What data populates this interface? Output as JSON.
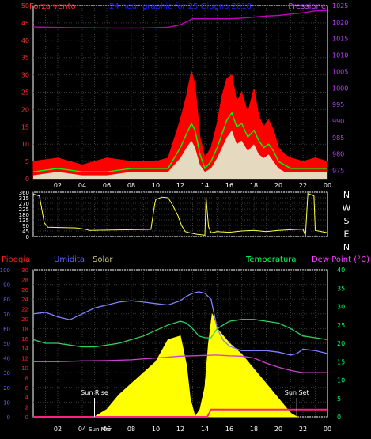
{
  "chart_data": [
    {
      "type": "line",
      "panel": "wind-pressure",
      "title": "24 hour graphic for  25 Giugno 2018",
      "left_label": "Forza vento",
      "right_label": "Pressione",
      "x_ticks": [
        "02",
        "04",
        "06",
        "08",
        "10",
        "12",
        "14",
        "16",
        "18",
        "20",
        "22",
        "00"
      ],
      "y_left_ticks": [
        0,
        5,
        10,
        15,
        20,
        25,
        30,
        35,
        40,
        45,
        50
      ],
      "y_right_ticks": [
        975,
        980,
        985,
        990,
        995,
        1000,
        1005,
        1010,
        1015,
        1020,
        1025
      ],
      "y_left_range": [
        0,
        50
      ],
      "y_right_range": [
        972.5,
        1025
      ],
      "grid": true,
      "colors": {
        "pressure": "#c000c0",
        "gust": "#ff0000",
        "average": "#00ff00",
        "speed": "#e0ffe0",
        "left_axis": "#ff3030",
        "right_axis": "#c040ff"
      },
      "series": [
        {
          "key": "pressure",
          "hours": [
            0,
            3,
            6,
            9,
            10,
            11,
            12,
            13,
            14,
            15,
            16,
            17,
            18,
            19,
            20,
            21,
            22,
            23,
            24
          ],
          "values": [
            1018.5,
            1018.3,
            1018.2,
            1018.2,
            1018.3,
            1018.4,
            1019.2,
            1021,
            1021,
            1021,
            1021,
            1021.2,
            1021.5,
            1021.8,
            1022,
            1022.4,
            1022.8,
            1023.4,
            1023.5
          ]
        },
        {
          "key": "gust",
          "hours": [
            0,
            2,
            4,
            6,
            8,
            10,
            11,
            12,
            12.5,
            12.9,
            13.2,
            13.6,
            14,
            14.5,
            15,
            15.4,
            15.8,
            16.2,
            16.6,
            17,
            17.5,
            18,
            18.4,
            18.8,
            19.2,
            19.6,
            20,
            20.5,
            21,
            22,
            23,
            24
          ],
          "values": [
            5,
            6,
            4,
            6,
            5,
            5,
            6,
            17,
            24,
            31,
            27,
            12,
            6,
            9,
            16,
            24,
            29,
            30,
            22,
            25,
            19,
            26,
            18,
            15,
            17,
            14,
            9,
            7,
            6,
            5,
            6,
            5
          ]
        },
        {
          "key": "average",
          "hours": [
            0,
            2,
            4,
            6,
            8,
            10,
            11,
            12,
            12.5,
            12.9,
            13.2,
            13.6,
            14,
            14.5,
            15,
            15.4,
            15.8,
            16.2,
            16.6,
            17,
            17.5,
            18,
            18.4,
            18.8,
            19.2,
            19.6,
            20,
            20.5,
            21,
            22,
            23,
            24
          ],
          "values": [
            2,
            3,
            2,
            2,
            3,
            3,
            3,
            9,
            13,
            16,
            14,
            7,
            3,
            5,
            9,
            13,
            17,
            19,
            15,
            16,
            12,
            14,
            11,
            9,
            10,
            8,
            5,
            4,
            3,
            3,
            3,
            3
          ]
        },
        {
          "key": "speed",
          "hours": [
            0,
            2,
            4,
            6,
            8,
            10,
            11,
            12,
            12.5,
            12.9,
            13.2,
            13.6,
            14,
            14.5,
            15,
            15.4,
            15.8,
            16.2,
            16.6,
            17,
            17.5,
            18,
            18.4,
            18.8,
            19.2,
            19.6,
            20,
            20.5,
            21,
            22,
            23,
            24
          ],
          "values": [
            1,
            2,
            1,
            1,
            2,
            2,
            2,
            6,
            9,
            11,
            9,
            4,
            2,
            3,
            6,
            9,
            12,
            14,
            10,
            11,
            8,
            10,
            7,
            6,
            7,
            5,
            3,
            2,
            2,
            2,
            2,
            2
          ]
        }
      ]
    },
    {
      "type": "line",
      "panel": "wind-direction",
      "y_left_ticks": [
        0,
        45,
        90,
        135,
        180,
        225,
        270,
        315,
        360
      ],
      "y_right_ticks": [
        "N",
        "W",
        "S",
        "E",
        "N"
      ],
      "y_range": [
        0,
        360
      ],
      "grid": true,
      "color": "#ffff40",
      "hours": [
        0,
        0.5,
        0.9,
        1.2,
        3.5,
        4.2,
        4.6,
        8,
        9.6,
        9.9,
        10,
        10.5,
        11,
        11.4,
        11.8,
        12.1,
        12.4,
        12.8,
        13.2,
        14,
        14.1,
        14.3,
        14.5,
        15,
        16,
        17,
        18,
        19,
        20,
        21,
        22,
        22.2,
        22.4,
        22.9,
        23,
        23.5,
        24
      ],
      "values": [
        345,
        330,
        110,
        75,
        70,
        60,
        50,
        55,
        58,
        260,
        300,
        320,
        315,
        250,
        170,
        90,
        40,
        30,
        20,
        10,
        320,
        80,
        30,
        40,
        35,
        45,
        50,
        40,
        50,
        55,
        60,
        5,
        350,
        330,
        50,
        40,
        30
      ]
    },
    {
      "type": "area",
      "panel": "rain-humidity-solar-temperature",
      "labels": {
        "rain": "Pioggia",
        "humidity": "Umidita",
        "solar": "Solar",
        "temperature": "Temperatura",
        "dewpoint": "Dew Point (°C)"
      },
      "annotations": [
        {
          "text": "Sun Rise",
          "hour": 5.0
        },
        {
          "text": "Sun Set",
          "hour": 21.5
        }
      ],
      "bottom_marker": "Sun Mon",
      "x_ticks": [
        "02",
        "04",
        "06",
        "08",
        "10",
        "12",
        "14",
        "16",
        "18",
        "20",
        "22",
        "00"
      ],
      "y_humidity_ticks": [
        0,
        10,
        20,
        30,
        40,
        50,
        60,
        70,
        80,
        90,
        100
      ],
      "y_rain_ticks": [
        0,
        2,
        4,
        6,
        8,
        10,
        12,
        14,
        16,
        18,
        20,
        22,
        24,
        26,
        28,
        30
      ],
      "y_right_ticks": [
        0,
        5,
        10,
        15,
        20,
        25,
        30,
        35,
        40
      ],
      "grid": true,
      "colors": {
        "humidity": "#8080ff",
        "rain": "#ff2080",
        "solar": "#ffff00",
        "temperature": "#30d060",
        "dewpoint": "#d040d0",
        "left_axis": "#ff2020",
        "humidity_axis": "#6060ff",
        "right_axis": "#00ff60"
      },
      "humidity": {
        "hours": [
          0,
          1,
          2,
          3,
          4,
          5,
          6,
          7,
          8,
          9,
          10,
          11,
          12,
          12.5,
          13,
          13.5,
          14,
          14.5,
          15,
          15.5,
          16,
          17,
          18,
          19,
          20,
          21,
          21.5,
          22,
          23,
          24
        ],
        "values": [
          70,
          71,
          68,
          66,
          70,
          74,
          76,
          78,
          79,
          78,
          77,
          76,
          79,
          82,
          84,
          85,
          84,
          80,
          60,
          52,
          48,
          45,
          45,
          45,
          44,
          42,
          43,
          46,
          45,
          43
        ]
      },
      "temperature": {
        "hours": [
          0,
          1,
          2,
          3,
          4,
          5,
          6,
          7,
          8,
          9,
          10,
          11,
          12,
          12.5,
          13,
          13.5,
          14,
          14.5,
          15,
          15.5,
          16,
          17,
          18,
          19,
          20,
          21,
          22,
          23,
          24
        ],
        "values": [
          21,
          20,
          20,
          19.5,
          19,
          19,
          19.5,
          20,
          21,
          22,
          23.5,
          25,
          26,
          25.5,
          24,
          22,
          21.5,
          21.5,
          24,
          25,
          26,
          26.5,
          26.5,
          26,
          25.5,
          24,
          22,
          21.5,
          21
        ]
      },
      "dewpoint": {
        "hours": [
          0,
          2,
          4,
          6,
          8,
          10,
          12,
          13,
          14,
          15,
          16,
          17,
          18,
          19,
          20,
          21,
          22,
          23,
          24
        ],
        "values": [
          15,
          15,
          15.2,
          15.3,
          15.5,
          16,
          16.5,
          16.6,
          16.7,
          16.8,
          16.6,
          16.5,
          16,
          14.6,
          13.5,
          12.6,
          12,
          12,
          12
        ]
      },
      "rain": {
        "hours": [
          0,
          14.2,
          14.5,
          24
        ],
        "values": [
          0,
          0,
          1.5,
          1.5
        ]
      },
      "solar": {
        "hours": [
          5,
          6,
          7,
          8,
          9,
          10,
          11,
          12,
          12.5,
          12.8,
          13.2,
          13.6,
          14,
          14.3,
          14.6,
          15,
          15.5,
          16,
          17,
          18,
          19,
          20,
          21,
          21.5
        ],
        "values": [
          0,
          2,
          6,
          9,
          12,
          15,
          21,
          22,
          14,
          5,
          0,
          2,
          8,
          20,
          28,
          24,
          22,
          20,
          17,
          13,
          9,
          5,
          1,
          0
        ]
      }
    }
  ]
}
